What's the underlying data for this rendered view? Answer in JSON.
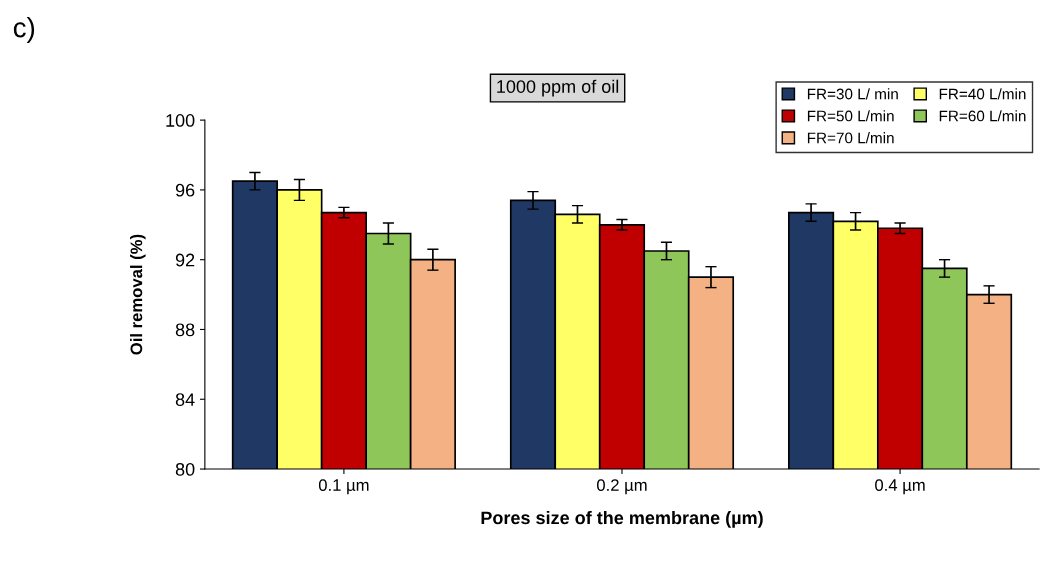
{
  "chart_data": {
    "type": "bar",
    "xlabel": "Pores size of the membrane (µm)",
    "ylabel": "Oil removal (%)",
    "annotations": [
      "c)",
      "1000 ppm of oil"
    ],
    "categories": [
      "0.1 µm",
      "0.2 µm",
      "0.4 µm"
    ],
    "series": [
      {
        "name": "FR=30 L/ min",
        "color": "#1f3864",
        "values": [
          96.5,
          95.4,
          94.7
        ],
        "errors": [
          0.5,
          0.5,
          0.5
        ]
      },
      {
        "name": "FR=40 L/min",
        "color": "#ffff66",
        "values": [
          96.0,
          94.6,
          94.2
        ],
        "errors": [
          0.6,
          0.5,
          0.5
        ]
      },
      {
        "name": "FR=50 L/min",
        "color": "#c00000",
        "values": [
          94.7,
          94.0,
          93.8
        ],
        "errors": [
          0.3,
          0.3,
          0.3
        ]
      },
      {
        "name": "FR=60 L/min",
        "color": "#8fc65a",
        "values": [
          93.5,
          92.5,
          91.5
        ],
        "errors": [
          0.6,
          0.5,
          0.5
        ]
      },
      {
        "name": "FR=70 L/min",
        "color": "#f4b183",
        "values": [
          92.0,
          91.0,
          90.0
        ],
        "errors": [
          0.6,
          0.6,
          0.5
        ]
      }
    ],
    "ylim": [
      80,
      100
    ],
    "yticks": [
      80,
      84,
      88,
      92,
      96,
      100
    ],
    "grid": false,
    "legend": "top right"
  }
}
